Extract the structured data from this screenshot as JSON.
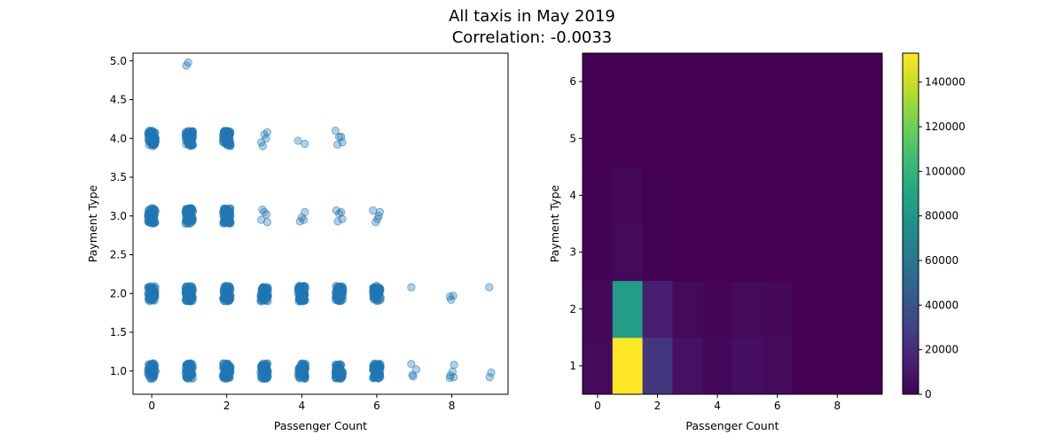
{
  "figure": {
    "title_line1": "All taxis in May 2019",
    "title_line2": "Correlation: -0.0033"
  },
  "chart_data": [
    {
      "type": "scatter",
      "xlabel": "Passenger Count",
      "ylabel": "Payment Type",
      "xlim": [
        -0.5,
        9.5
      ],
      "ylim": [
        0.7,
        5.1
      ],
      "xticks": [
        0,
        2,
        4,
        6,
        8
      ],
      "yticks": [
        1.0,
        1.5,
        2.0,
        2.5,
        3.0,
        3.5,
        4.0,
        4.5,
        5.0
      ],
      "point_color": "#1f77b4",
      "point_alpha": 0.35,
      "jitter": 0.1,
      "grid": false,
      "clusters": [
        {
          "x": 0,
          "y": 1,
          "density": "dense"
        },
        {
          "x": 1,
          "y": 1,
          "density": "dense"
        },
        {
          "x": 2,
          "y": 1,
          "density": "dense"
        },
        {
          "x": 3,
          "y": 1,
          "density": "dense"
        },
        {
          "x": 4,
          "y": 1,
          "density": "dense"
        },
        {
          "x": 5,
          "y": 1,
          "density": "dense"
        },
        {
          "x": 6,
          "y": 1,
          "density": "dense"
        },
        {
          "x": 0,
          "y": 2,
          "density": "dense"
        },
        {
          "x": 1,
          "y": 2,
          "density": "dense"
        },
        {
          "x": 2,
          "y": 2,
          "density": "dense"
        },
        {
          "x": 3,
          "y": 2,
          "density": "dense"
        },
        {
          "x": 4,
          "y": 2,
          "density": "dense"
        },
        {
          "x": 5,
          "y": 2,
          "density": "dense"
        },
        {
          "x": 6,
          "y": 2,
          "density": "dense"
        },
        {
          "x": 0,
          "y": 3,
          "density": "dense"
        },
        {
          "x": 1,
          "y": 3,
          "density": "dense"
        },
        {
          "x": 2,
          "y": 3,
          "density": "dense"
        },
        {
          "x": 0,
          "y": 4,
          "density": "dense"
        },
        {
          "x": 1,
          "y": 4,
          "density": "dense"
        },
        {
          "x": 2,
          "y": 4,
          "density": "dense"
        }
      ],
      "points": [
        [
          3.0,
          3.05
        ],
        [
          2.92,
          2.95
        ],
        [
          3.08,
          2.92
        ],
        [
          2.95,
          3.08
        ],
        [
          3.06,
          3.02
        ],
        [
          4.0,
          2.98
        ],
        [
          4.08,
          3.05
        ],
        [
          3.95,
          2.93
        ],
        [
          4.05,
          2.95
        ],
        [
          4.92,
          3.07
        ],
        [
          5.0,
          3.03
        ],
        [
          5.08,
          2.96
        ],
        [
          4.96,
          2.93
        ],
        [
          5.05,
          3.05
        ],
        [
          5.9,
          3.07
        ],
        [
          6.05,
          3.0
        ],
        [
          5.97,
          2.92
        ],
        [
          6.08,
          3.05
        ],
        [
          6.02,
          2.96
        ],
        [
          3.0,
          4.05
        ],
        [
          2.92,
          3.95
        ],
        [
          3.08,
          4.08
        ],
        [
          2.96,
          3.9
        ],
        [
          3.05,
          4.0
        ],
        [
          3.9,
          3.97
        ],
        [
          4.08,
          3.93
        ],
        [
          4.9,
          4.1
        ],
        [
          5.0,
          4.02
        ],
        [
          5.08,
          3.95
        ],
        [
          4.95,
          3.92
        ],
        [
          5.05,
          4.02
        ],
        [
          0.92,
          4.94
        ],
        [
          0.97,
          4.98
        ],
        [
          6.92,
          2.08
        ],
        [
          7.95,
          1.96
        ],
        [
          8.04,
          1.97
        ],
        [
          7.98,
          1.92
        ],
        [
          9.0,
          2.08
        ],
        [
          6.92,
          1.09
        ],
        [
          6.95,
          0.95
        ],
        [
          7.05,
          1.02
        ],
        [
          6.97,
          0.93
        ],
        [
          7.96,
          0.94
        ],
        [
          8.02,
          0.99
        ],
        [
          8.06,
          1.08
        ],
        [
          7.95,
          0.91
        ],
        [
          8.05,
          0.92
        ],
        [
          9.05,
          0.98
        ],
        [
          9.01,
          0.92
        ]
      ]
    },
    {
      "type": "heatmap",
      "xlabel": "Passenger Count",
      "ylabel": "Payment Type",
      "xlim": [
        -0.5,
        9.5
      ],
      "ylim": [
        0.5,
        6.5
      ],
      "xticks": [
        0,
        2,
        4,
        6,
        8
      ],
      "yticks": [
        1,
        2,
        3,
        4,
        5,
        6
      ],
      "colormap": "viridis",
      "vmin": 0,
      "vmax": 153000,
      "colorbar_ticks": [
        0,
        20000,
        40000,
        60000,
        80000,
        100000,
        120000,
        140000
      ],
      "x_bins": [
        0,
        1,
        2,
        3,
        4,
        5,
        6,
        7,
        8,
        9
      ],
      "y_bins": [
        1,
        2,
        3,
        4,
        5,
        6
      ],
      "grid": false,
      "cells": [
        {
          "x": 0,
          "y": 1,
          "value": 4000
        },
        {
          "x": 1,
          "y": 1,
          "value": 153000
        },
        {
          "x": 2,
          "y": 1,
          "value": 25000
        },
        {
          "x": 3,
          "y": 1,
          "value": 7000
        },
        {
          "x": 4,
          "y": 1,
          "value": 3500
        },
        {
          "x": 5,
          "y": 1,
          "value": 6500
        },
        {
          "x": 6,
          "y": 1,
          "value": 4500
        },
        {
          "x": 0,
          "y": 2,
          "value": 3000
        },
        {
          "x": 1,
          "y": 2,
          "value": 85000
        },
        {
          "x": 2,
          "y": 2,
          "value": 13000
        },
        {
          "x": 3,
          "y": 2,
          "value": 4000
        },
        {
          "x": 4,
          "y": 2,
          "value": 2000
        },
        {
          "x": 5,
          "y": 2,
          "value": 4000
        },
        {
          "x": 6,
          "y": 2,
          "value": 3000
        },
        {
          "x": 0,
          "y": 3,
          "value": 1000
        },
        {
          "x": 1,
          "y": 3,
          "value": 4000
        },
        {
          "x": 2,
          "y": 3,
          "value": 600
        },
        {
          "x": 0,
          "y": 4,
          "value": 800
        },
        {
          "x": 1,
          "y": 4,
          "value": 3000
        },
        {
          "x": 2,
          "y": 4,
          "value": 500
        }
      ]
    }
  ]
}
